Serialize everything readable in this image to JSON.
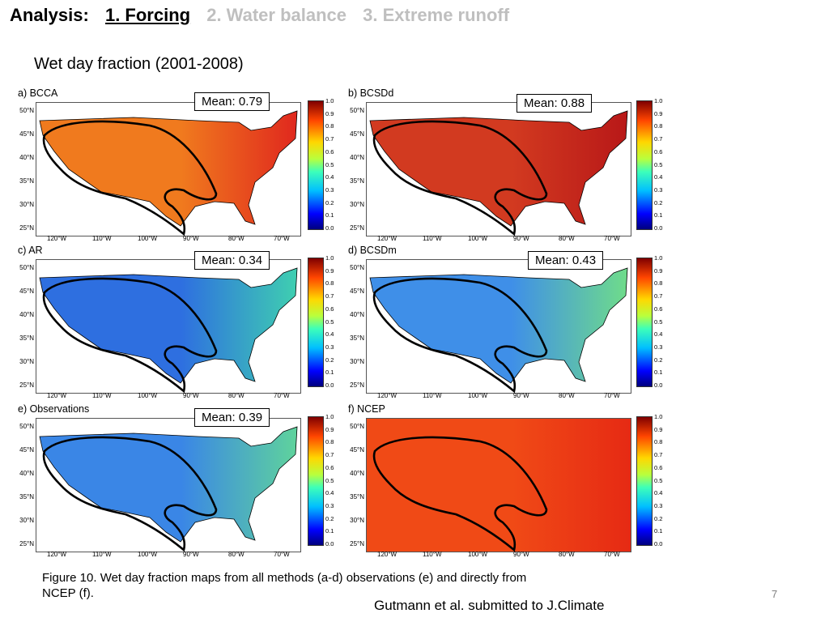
{
  "header": {
    "items": [
      {
        "label": "Analysis:",
        "state": "current"
      },
      {
        "label": "1. Forcing",
        "state": "current"
      },
      {
        "label": "2. Water balance",
        "state": "dim"
      },
      {
        "label": "3. Extreme runoff",
        "state": "dim"
      }
    ]
  },
  "subtitle": "Wet day fraction (2001-2008)",
  "axes": {
    "lat_labels": [
      "50°N",
      "45°N",
      "40°N",
      "35°N",
      "30°N",
      "25°N"
    ],
    "lon_labels": [
      "120°W",
      "110°W",
      "100°W",
      "90°W",
      "80°W",
      "70°W"
    ],
    "colorbar_ticks": [
      "1.0",
      "0.9",
      "0.8",
      "0.7",
      "0.6",
      "0.5",
      "0.4",
      "0.3",
      "0.2",
      "0.1",
      "0.0"
    ]
  },
  "panels": [
    {
      "label": "a) BCCA",
      "mean": "Mean: 0.79",
      "west": "#f07a1e",
      "east": "#e0281e"
    },
    {
      "label": "b) BCSDd",
      "mean": "Mean: 0.88",
      "west": "#d23a20",
      "east": "#b81818"
    },
    {
      "label": "c) AR",
      "mean": "Mean: 0.34",
      "west": "#2e6fe0",
      "east": "#3fcfb0"
    },
    {
      "label": "d) BCSDm",
      "mean": "Mean: 0.43",
      "west": "#3f8fe8",
      "east": "#6fdc8a"
    },
    {
      "label": "e)  Observations",
      "mean": "Mean: 0.39",
      "west": "#3a86e6",
      "east": "#5fd39c"
    },
    {
      "label": "f) NCEP",
      "mean": "",
      "west": "#f04a16",
      "east": "#e62a14"
    }
  ],
  "caption": "Figure 10.  Wet day fraction maps from all methods (a-d) observations (e) and directly from NCEP (f).",
  "citation": "Gutmann et al. submitted to J.Climate",
  "page_number": "7"
}
